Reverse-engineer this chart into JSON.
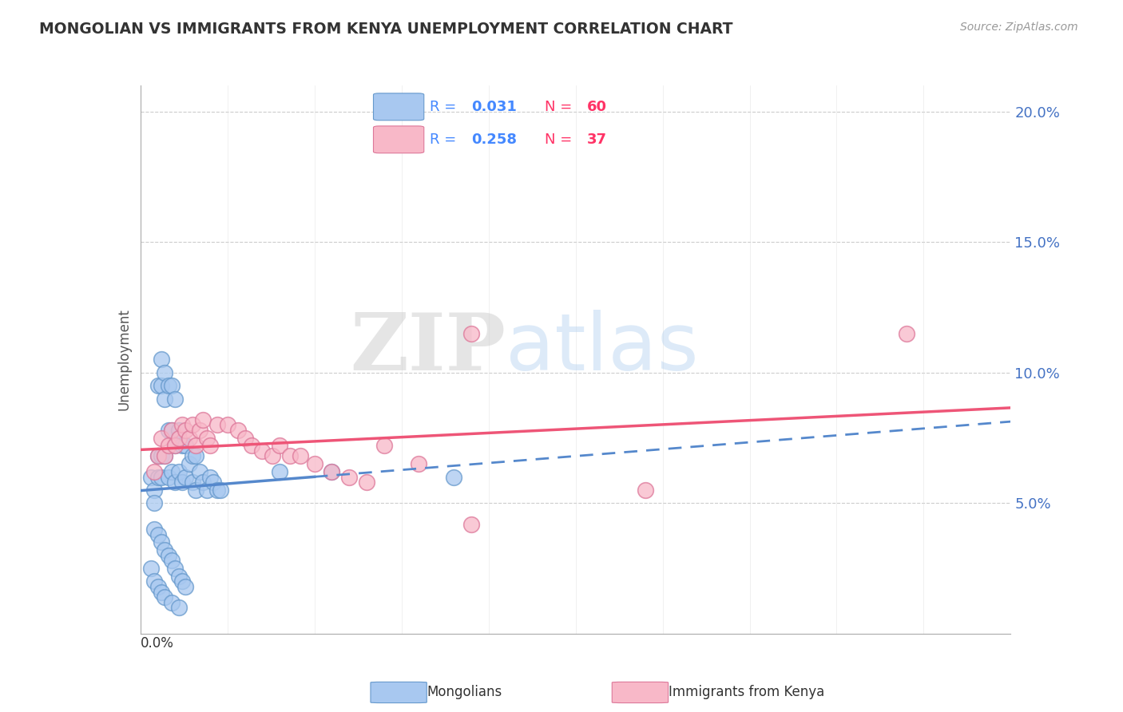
{
  "title": "MONGOLIAN VS IMMIGRANTS FROM KENYA UNEMPLOYMENT CORRELATION CHART",
  "source": "Source: ZipAtlas.com",
  "xlim": [
    0.0,
    0.25
  ],
  "ylim": [
    0.0,
    0.21
  ],
  "ylabel_ticks": [
    0.05,
    0.1,
    0.15,
    0.2
  ],
  "ylabel_tick_labels": [
    "5.0%",
    "10.0%",
    "15.0%",
    "20.0%"
  ],
  "mongolian_color": "#a8c8f0",
  "mongolian_edge": "#6699cc",
  "kenya_color": "#f8b8c8",
  "kenya_edge": "#dd7799",
  "trend_mongolian_color": "#5588cc",
  "trend_kenya_color": "#ee5577",
  "background_color": "#ffffff",
  "mongolian_R": 0.031,
  "mongolian_N": 60,
  "kenya_R": 0.258,
  "kenya_N": 37,
  "legend_R_color": "#4488ff",
  "legend_N_color": "#ff3366",
  "watermark_zip": "ZIP",
  "watermark_atlas": "atlas",
  "mongolian_x": [
    0.003,
    0.004,
    0.004,
    0.005,
    0.005,
    0.005,
    0.006,
    0.006,
    0.006,
    0.006,
    0.007,
    0.007,
    0.007,
    0.008,
    0.008,
    0.008,
    0.009,
    0.009,
    0.009,
    0.01,
    0.01,
    0.01,
    0.011,
    0.011,
    0.012,
    0.012,
    0.013,
    0.013,
    0.014,
    0.015,
    0.015,
    0.016,
    0.016,
    0.017,
    0.018,
    0.019,
    0.02,
    0.021,
    0.022,
    0.023,
    0.004,
    0.005,
    0.006,
    0.007,
    0.008,
    0.009,
    0.01,
    0.011,
    0.012,
    0.013,
    0.003,
    0.004,
    0.005,
    0.006,
    0.007,
    0.009,
    0.011,
    0.04,
    0.055,
    0.09
  ],
  "mongolian_y": [
    0.06,
    0.055,
    0.05,
    0.095,
    0.068,
    0.06,
    0.105,
    0.095,
    0.068,
    0.06,
    0.1,
    0.09,
    0.068,
    0.095,
    0.078,
    0.06,
    0.095,
    0.078,
    0.062,
    0.09,
    0.072,
    0.058,
    0.078,
    0.062,
    0.072,
    0.058,
    0.072,
    0.06,
    0.065,
    0.068,
    0.058,
    0.068,
    0.055,
    0.062,
    0.058,
    0.055,
    0.06,
    0.058,
    0.055,
    0.055,
    0.04,
    0.038,
    0.035,
    0.032,
    0.03,
    0.028,
    0.025,
    0.022,
    0.02,
    0.018,
    0.025,
    0.02,
    0.018,
    0.016,
    0.014,
    0.012,
    0.01,
    0.062,
    0.062,
    0.06
  ],
  "kenya_x": [
    0.004,
    0.005,
    0.006,
    0.007,
    0.008,
    0.009,
    0.01,
    0.011,
    0.012,
    0.013,
    0.014,
    0.015,
    0.016,
    0.017,
    0.018,
    0.019,
    0.02,
    0.022,
    0.025,
    0.028,
    0.03,
    0.032,
    0.035,
    0.038,
    0.04,
    0.043,
    0.046,
    0.05,
    0.055,
    0.06,
    0.065,
    0.07,
    0.08,
    0.095,
    0.095,
    0.22,
    0.145
  ],
  "kenya_y": [
    0.062,
    0.068,
    0.075,
    0.068,
    0.072,
    0.078,
    0.072,
    0.075,
    0.08,
    0.078,
    0.075,
    0.08,
    0.072,
    0.078,
    0.082,
    0.075,
    0.072,
    0.08,
    0.08,
    0.078,
    0.075,
    0.072,
    0.07,
    0.068,
    0.072,
    0.068,
    0.068,
    0.065,
    0.062,
    0.06,
    0.058,
    0.072,
    0.065,
    0.042,
    0.115,
    0.115,
    0.055
  ]
}
